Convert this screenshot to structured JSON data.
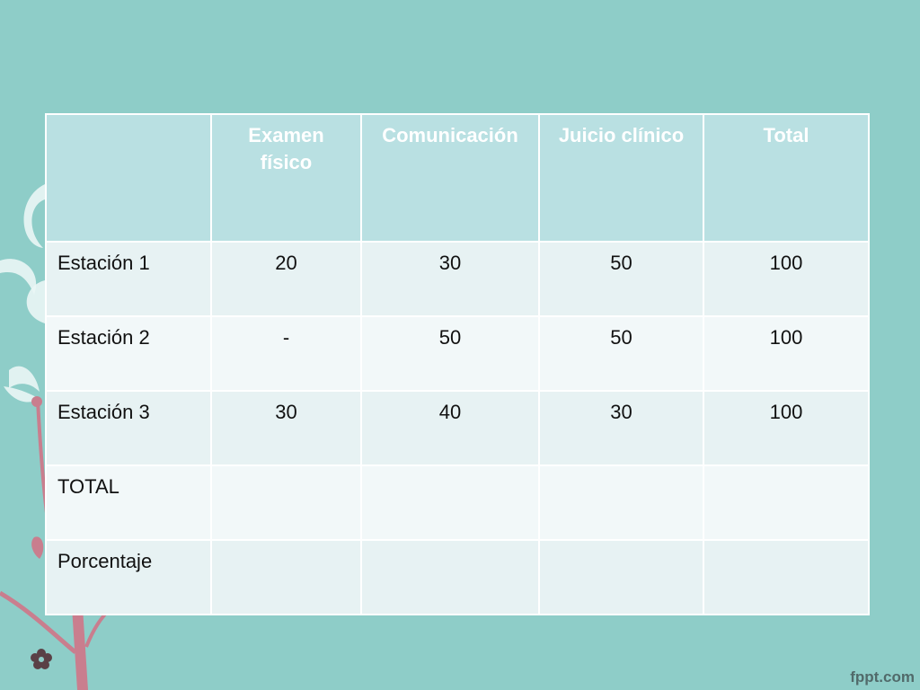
{
  "table": {
    "headers": [
      "",
      "Examen físico",
      "Comunicación",
      "Juicio clínico",
      "Total"
    ],
    "rows": [
      {
        "label": "Estación 1",
        "cells": [
          "20",
          "30",
          "50",
          "100"
        ]
      },
      {
        "label": "Estación 2",
        "cells": [
          "-",
          "50",
          "50",
          "100"
        ]
      },
      {
        "label": "Estación 3",
        "cells": [
          "30",
          "40",
          "30",
          "100"
        ]
      },
      {
        "label": "TOTAL",
        "cells": [
          "",
          "",
          "",
          ""
        ]
      },
      {
        "label": "Porcentaje",
        "cells": [
          "",
          "",
          "",
          ""
        ]
      }
    ]
  },
  "footer": {
    "brand": "fppt.com"
  },
  "colors": {
    "background": "#8ecdc8",
    "header_fill": "#b9e0e2",
    "row_band_a": "#e7f2f3",
    "row_band_b": "#f2f8f9",
    "decor_pink": "#c97e8e"
  }
}
